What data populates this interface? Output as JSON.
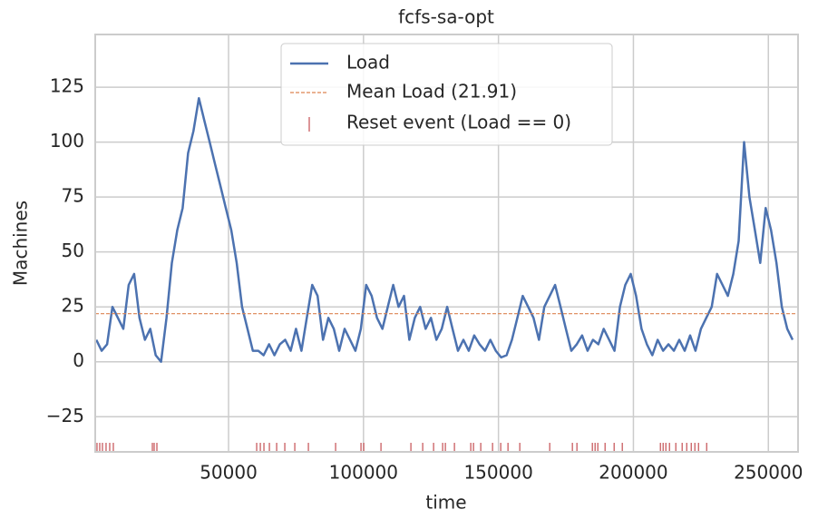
{
  "chart_data": {
    "type": "line",
    "title": "fcfs-sa-opt",
    "x_label": "time",
    "y_label": "Machines",
    "xlim": [
      600,
      261000
    ],
    "ylim": [
      -41,
      149
    ],
    "xticks": [
      50000,
      100000,
      150000,
      200000,
      250000
    ],
    "yticks": [
      {
        "value": -25,
        "label": "−25"
      },
      0,
      25,
      50,
      75,
      100,
      125
    ],
    "grid": true,
    "legend_position": "upper center",
    "x": [
      1000,
      3000,
      5000,
      7000,
      9000,
      11000,
      13000,
      15000,
      17000,
      19000,
      21000,
      23000,
      25000,
      27000,
      29000,
      31000,
      33000,
      35000,
      37000,
      39000,
      41000,
      43000,
      45000,
      47000,
      49000,
      51000,
      53000,
      55000,
      57000,
      59000,
      61000,
      63000,
      65000,
      67000,
      69000,
      71000,
      73000,
      75000,
      77000,
      79000,
      81000,
      83000,
      85000,
      87000,
      89000,
      91000,
      93000,
      95000,
      97000,
      99000,
      101000,
      103000,
      105000,
      107000,
      109000,
      111000,
      113000,
      115000,
      117000,
      119000,
      121000,
      123000,
      125000,
      127000,
      129000,
      131000,
      133000,
      135000,
      137000,
      139000,
      141000,
      143000,
      145000,
      147000,
      149000,
      151000,
      153000,
      155000,
      157000,
      159000,
      161000,
      163000,
      165000,
      167000,
      169000,
      171000,
      173000,
      175000,
      177000,
      179000,
      181000,
      183000,
      185000,
      187000,
      189000,
      191000,
      193000,
      195000,
      197000,
      199000,
      201000,
      203000,
      205000,
      207000,
      209000,
      211000,
      213000,
      215000,
      217000,
      219000,
      221000,
      223000,
      225000,
      227000,
      229000,
      231000,
      233000,
      235000,
      237000,
      239000,
      241000,
      243000,
      245000,
      247000,
      249000,
      251000,
      253000,
      255000,
      257000,
      259000
    ],
    "series": [
      {
        "name": "Load",
        "color": "#4c72b0",
        "values": [
          10,
          5,
          8,
          25,
          20,
          15,
          35,
          40,
          20,
          10,
          15,
          3,
          0,
          20,
          45,
          60,
          70,
          95,
          105,
          120,
          110,
          100,
          90,
          80,
          70,
          60,
          45,
          25,
          15,
          5,
          5,
          3,
          8,
          3,
          8,
          10,
          5,
          15,
          5,
          20,
          35,
          30,
          10,
          20,
          15,
          5,
          15,
          10,
          5,
          15,
          35,
          30,
          20,
          15,
          25,
          35,
          25,
          30,
          10,
          20,
          25,
          15,
          20,
          10,
          15,
          25,
          15,
          5,
          10,
          5,
          12,
          8,
          5,
          10,
          5,
          2,
          3,
          10,
          20,
          30,
          25,
          20,
          10,
          25,
          30,
          35,
          25,
          15,
          5,
          8,
          12,
          5,
          10,
          8,
          15,
          10,
          5,
          25,
          35,
          40,
          30,
          15,
          8,
          3,
          10,
          5,
          8,
          5,
          10,
          5,
          12,
          5,
          15,
          20,
          25,
          40,
          35,
          30,
          40,
          55,
          100,
          75,
          60,
          45,
          70,
          60,
          45,
          25,
          15,
          10
        ]
      }
    ],
    "mean": {
      "name": "Mean Load (21.91)",
      "value": 21.91,
      "color": "#dd8452"
    },
    "reset_events": {
      "name": "Reset event (Load == 0)",
      "color": "#c44e52",
      "x": [
        1260,
        2270,
        3280,
        4620,
        5970,
        7310,
        21770,
        22440,
        23450,
        60420,
        61770,
        63110,
        65130,
        67820,
        70840,
        74540,
        79580,
        89660,
        99070,
        100080,
        106470,
        117560,
        121930,
        125960,
        129320,
        130330,
        133690,
        139740,
        140750,
        143440,
        147810,
        150840,
        153530,
        157900,
        168990,
        177390,
        179070,
        184790,
        185800,
        186810,
        189500,
        192860,
        195880,
        210000,
        211010,
        212020,
        213360,
        215710,
        218060,
        219750,
        221430,
        222770,
        224120,
        227140
      ]
    }
  }
}
